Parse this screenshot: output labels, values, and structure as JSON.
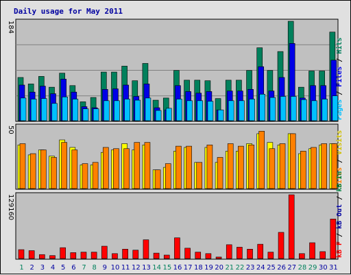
{
  "title": "Daily usage for May 2011",
  "colors": {
    "hits": "#00805c",
    "files": "#0000e6",
    "pages": "#00c0ff",
    "visits": "#ffff00",
    "sites": "#ff8000",
    "kb_in": "#008040",
    "kb_out": "#0000a0",
    "kb_f": "#ff0000",
    "plot_bg": "#c0c0c0",
    "frame_bg": "#e0e0e0",
    "weekend_label": "#00805c",
    "weekday_label": "#0000a0"
  },
  "right_labels": {
    "top": [
      {
        "text": "Pages",
        "color": "#00c0ff"
      },
      {
        "text": " / ",
        "color": "#000000"
      },
      {
        "text": "Files",
        "color": "#0000e6"
      },
      {
        "text": " / ",
        "color": "#000000"
      },
      {
        "text": "Hits",
        "color": "#00805c"
      }
    ],
    "middle": [
      {
        "text": "Sites",
        "color": "#ff8000"
      },
      {
        "text": " / ",
        "color": "#000000"
      },
      {
        "text": "Visits",
        "color": "#d0c000"
      }
    ],
    "bottom": [
      {
        "text": "kB F",
        "color": "#ff0000"
      },
      {
        "text": " / ",
        "color": "#000000"
      },
      {
        "text": "kB Out",
        "color": "#0000a0"
      },
      {
        "text": " / ",
        "color": "#000000"
      },
      {
        "text": "kB In",
        "color": "#008040"
      }
    ]
  },
  "chart_data": [
    {
      "type": "bar",
      "title": "Daily usage for May 2011",
      "ylabel": "184",
      "ymax": 184,
      "categories": [
        "1",
        "2",
        "3",
        "4",
        "5",
        "6",
        "7",
        "8",
        "9",
        "10",
        "11",
        "12",
        "13",
        "14",
        "15",
        "16",
        "17",
        "18",
        "19",
        "20",
        "21",
        "22",
        "23",
        "24",
        "25",
        "26",
        "27",
        "28",
        "29",
        "30",
        "31"
      ],
      "weekend_days": [
        1,
        7,
        8,
        14,
        15,
        21,
        22,
        28,
        29
      ],
      "series": [
        {
          "name": "Hits",
          "values": [
            80,
            68,
            82,
            62,
            88,
            65,
            35,
            43,
            90,
            90,
            101,
            74,
            106,
            38,
            42,
            93,
            75,
            75,
            74,
            41,
            75,
            75,
            93,
            135,
            93,
            128,
            184,
            62,
            92,
            92,
            164
          ]
        },
        {
          "name": "Files",
          "values": [
            66,
            53,
            64,
            50,
            77,
            53,
            26,
            24,
            58,
            59,
            66,
            45,
            68,
            24,
            20,
            65,
            54,
            51,
            54,
            20,
            55,
            55,
            58,
            100,
            55,
            80,
            143,
            42,
            65,
            65,
            112
          ]
        },
        {
          "name": "Pages",
          "values": [
            42,
            40,
            41,
            32,
            44,
            40,
            22,
            22,
            37,
            37,
            40,
            38,
            42,
            19,
            23,
            40,
            37,
            37,
            36,
            20,
            37,
            37,
            40,
            49,
            43,
            45,
            45,
            39,
            37,
            40,
            46
          ]
        }
      ]
    },
    {
      "type": "bar",
      "ylabel": "50",
      "ymax": 50,
      "categories": [
        "1",
        "2",
        "3",
        "4",
        "5",
        "6",
        "7",
        "8",
        "9",
        "10",
        "11",
        "12",
        "13",
        "14",
        "15",
        "16",
        "17",
        "18",
        "19",
        "20",
        "21",
        "22",
        "23",
        "24",
        "25",
        "26",
        "27",
        "28",
        "29",
        "30",
        "31"
      ],
      "series": [
        {
          "name": "Visits",
          "values": [
            35,
            27,
            31,
            26,
            39,
            33,
            19,
            19,
            29,
            31,
            36,
            31,
            35,
            15,
            17,
            30,
            33,
            21,
            33,
            21,
            30,
            30,
            36,
            44,
            37,
            35,
            44,
            28,
            32,
            35,
            36
          ]
        },
        {
          "name": "Sites",
          "values": [
            36,
            28,
            31,
            25,
            37,
            31,
            20,
            21,
            33,
            32,
            32,
            37,
            37,
            15,
            20,
            34,
            34,
            21,
            35,
            25,
            36,
            34,
            35,
            46,
            32,
            36,
            44,
            30,
            33,
            36,
            36
          ]
        }
      ]
    },
    {
      "type": "bar",
      "ylabel": "129160",
      "ymax": 129160,
      "categories": [
        "1",
        "2",
        "3",
        "4",
        "5",
        "6",
        "7",
        "8",
        "9",
        "10",
        "11",
        "12",
        "13",
        "14",
        "15",
        "16",
        "17",
        "18",
        "19",
        "20",
        "21",
        "22",
        "23",
        "24",
        "25",
        "26",
        "27",
        "28",
        "29",
        "30",
        "31"
      ],
      "series": [
        {
          "name": "kB In",
          "values": [
            0,
            0,
            0,
            0,
            0,
            0,
            0,
            0,
            0,
            0,
            0,
            0,
            0,
            0,
            0,
            0,
            0,
            0,
            0,
            0,
            0,
            0,
            0,
            0,
            0,
            0,
            0,
            0,
            0,
            0,
            0
          ]
        },
        {
          "name": "kB Out",
          "values": [
            0,
            0,
            0,
            0,
            0,
            0,
            0,
            0,
            0,
            0,
            0,
            0,
            0,
            0,
            0,
            0,
            0,
            0,
            0,
            0,
            0,
            0,
            0,
            0,
            0,
            0,
            0,
            0,
            0,
            0,
            0
          ]
        },
        {
          "name": "kB F",
          "values": [
            18000,
            16000,
            8000,
            6000,
            22000,
            12000,
            13000,
            13000,
            25000,
            10000,
            19000,
            17000,
            38000,
            11000,
            7000,
            42000,
            21000,
            13000,
            10000,
            3000,
            28000,
            23000,
            19000,
            29000,
            13000,
            53000,
            129160,
            10000,
            32000,
            14000,
            80000
          ]
        }
      ]
    }
  ]
}
